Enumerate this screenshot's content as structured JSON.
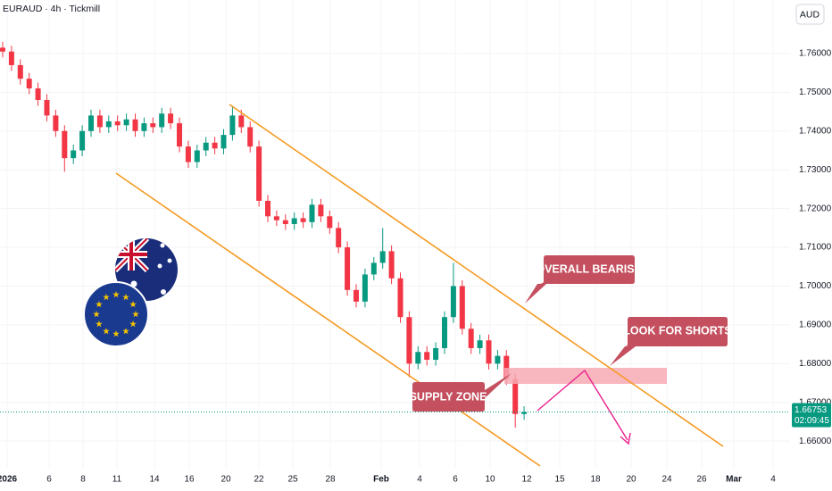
{
  "chart_data": {
    "type": "candlestick",
    "title": "EURAUD · 4h · Tickmill",
    "currency": "AUD",
    "up_color": "#089981",
    "down_color": "#f23645",
    "open": [
      1.7615,
      1.7605,
      1.757,
      1.7535,
      1.751,
      1.748,
      1.744,
      1.74,
      1.733,
      1.735,
      1.74,
      1.744,
      1.741,
      1.7425,
      1.7415,
      1.743,
      1.74,
      1.742,
      1.741,
      1.7445,
      1.742,
      1.736,
      1.732,
      1.735,
      1.737,
      1.7355,
      1.739,
      1.744,
      1.741,
      1.736,
      1.722,
      1.718,
      1.717,
      1.716,
      1.7175,
      1.7165,
      1.721,
      1.718,
      1.715,
      1.71,
      1.699,
      1.696,
      1.703,
      1.706,
      1.709,
      1.702,
      1.692,
      1.68,
      1.683,
      1.681,
      1.684,
      1.692,
      1.7,
      1.689,
      1.684,
      1.686,
      1.68,
      1.682,
      1.676,
      1.667
    ],
    "high": [
      1.763,
      1.762,
      1.7585,
      1.755,
      1.7525,
      1.7495,
      1.7455,
      1.7415,
      1.7365,
      1.7415,
      1.7455,
      1.7455,
      1.744,
      1.744,
      1.7445,
      1.7445,
      1.7435,
      1.7435,
      1.746,
      1.746,
      1.7435,
      1.7375,
      1.7365,
      1.7385,
      1.7385,
      1.7405,
      1.7465,
      1.7455,
      1.7425,
      1.7375,
      1.7235,
      1.7195,
      1.7185,
      1.719,
      1.719,
      1.7225,
      1.7225,
      1.7195,
      1.7165,
      1.7115,
      1.7005,
      1.7045,
      1.7075,
      1.715,
      1.7105,
      1.7035,
      1.6935,
      1.6845,
      1.6845,
      1.6855,
      1.6935,
      1.706,
      1.7015,
      1.6905,
      1.6875,
      1.6875,
      1.6835,
      1.6835,
      1.6775,
      1.669
    ],
    "low": [
      1.759,
      1.7555,
      1.752,
      1.7495,
      1.7465,
      1.7425,
      1.7385,
      1.7295,
      1.7315,
      1.7335,
      1.7385,
      1.7395,
      1.7395,
      1.74,
      1.74,
      1.7385,
      1.7385,
      1.7395,
      1.7395,
      1.7405,
      1.7345,
      1.7305,
      1.7305,
      1.7335,
      1.734,
      1.734,
      1.7375,
      1.7395,
      1.7345,
      1.7205,
      1.7165,
      1.7155,
      1.7145,
      1.7145,
      1.715,
      1.715,
      1.7165,
      1.7135,
      1.7085,
      1.6975,
      1.6945,
      1.6945,
      1.7015,
      1.7045,
      1.7005,
      1.6905,
      1.6765,
      1.6785,
      1.6795,
      1.6795,
      1.6825,
      1.6905,
      1.6875,
      1.6825,
      1.6825,
      1.6785,
      1.6785,
      1.6745,
      1.6635,
      1.6655
    ],
    "close": [
      1.7605,
      1.757,
      1.7535,
      1.751,
      1.748,
      1.744,
      1.74,
      1.733,
      1.735,
      1.74,
      1.744,
      1.741,
      1.7425,
      1.7415,
      1.743,
      1.74,
      1.742,
      1.741,
      1.7445,
      1.742,
      1.736,
      1.732,
      1.735,
      1.737,
      1.7355,
      1.739,
      1.744,
      1.741,
      1.736,
      1.722,
      1.718,
      1.717,
      1.716,
      1.7175,
      1.7165,
      1.721,
      1.718,
      1.715,
      1.71,
      1.699,
      1.696,
      1.703,
      1.706,
      1.709,
      1.702,
      1.692,
      1.68,
      1.683,
      1.681,
      1.684,
      1.692,
      1.7,
      1.689,
      1.684,
      1.686,
      1.68,
      1.682,
      1.676,
      1.667,
      1.6675
    ],
    "ylim": [
      1.6529,
      1.7738
    ],
    "yticks": [
      {
        "value": 1.76,
        "label": "1.76000"
      },
      {
        "value": 1.75,
        "label": "1.75000"
      },
      {
        "value": 1.74,
        "label": "1.74000"
      },
      {
        "value": 1.73,
        "label": "1.73000"
      },
      {
        "value": 1.72,
        "label": "1.72000"
      },
      {
        "value": 1.71,
        "label": "1.71000"
      },
      {
        "value": 1.7,
        "label": "1.70000"
      },
      {
        "value": 1.69,
        "label": "1.69000"
      },
      {
        "value": 1.68,
        "label": "1.68000"
      },
      {
        "value": 1.67,
        "label": "1.67000"
      },
      {
        "value": 1.66,
        "label": "1.66000"
      }
    ],
    "x_labels": [
      "2026",
      "6",
      "8",
      "11",
      "14",
      "16",
      "20",
      "22",
      "25",
      "28",
      "Feb",
      "4",
      "6",
      "10",
      "12",
      "15",
      "18",
      "20",
      "24",
      "26",
      "Mar",
      "4"
    ],
    "last_price": 1.66753,
    "countdown": "02:09:45",
    "annotations": [
      "OVERALL BEARISH",
      "LOOK FOR SHORTS",
      "SUPPLY ZONE"
    ]
  }
}
